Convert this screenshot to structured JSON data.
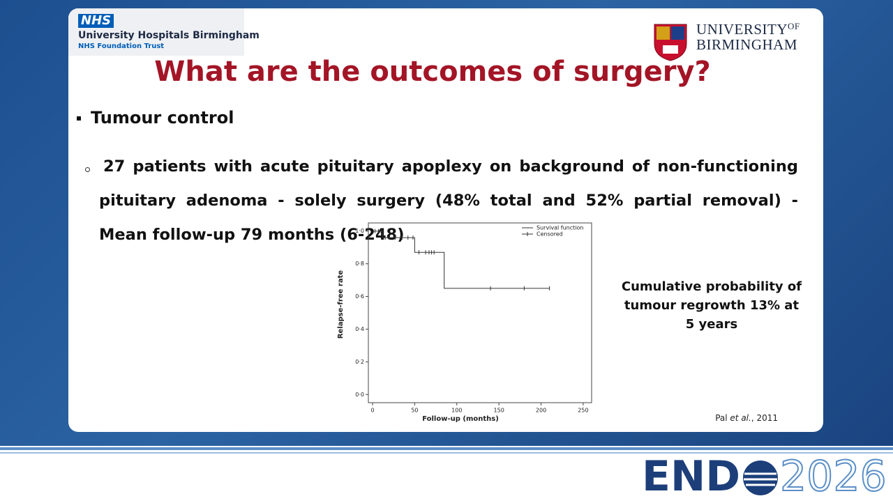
{
  "header": {
    "nhs_badge": "NHS",
    "organisation": "University Hospitals Birmingham",
    "trust": "NHS Foundation Trust",
    "university_line1": "UNIVERSITY",
    "university_of": "OF",
    "university_line2": "BIRMINGHAM"
  },
  "title": "What are the outcomes of surgery?",
  "bullet": "Tumour control",
  "sub_bullet": "27 patients with acute pituitary apoplexy on background of non-functioning pituitary adenoma - solely surgery (48% total and 52% partial removal) - Mean follow-up 79 months (6-248)",
  "callout": "Cumulative probability of tumour regrowth 13% at 5 years",
  "citation": {
    "author": "Pal",
    "etal": "et al.",
    "year": ", 2011"
  },
  "chart_data": {
    "type": "line",
    "step": true,
    "x_label": "Follow-up (months)",
    "y_label": "Relapse-free rate",
    "xlim": [
      -5,
      260
    ],
    "ylim": [
      -0.05,
      1.05
    ],
    "xticks": [
      0,
      50,
      100,
      150,
      200,
      250
    ],
    "yticks": [
      {
        "value": 0,
        "label": "0·0"
      },
      {
        "value": 0.2,
        "label": "0·2"
      },
      {
        "value": 0.4,
        "label": "0·4"
      },
      {
        "value": 0.6,
        "label": "0·6"
      },
      {
        "value": 0.8,
        "label": "0·8"
      },
      {
        "value": 1,
        "label": "1·0"
      }
    ],
    "legend": "top-right",
    "series": [
      {
        "name": "Survival function",
        "color": "#333333",
        "marker": "line",
        "x": [
          0,
          12,
          50,
          85,
          210
        ],
        "values": [
          1.0,
          0.96,
          0.87,
          0.65,
          0.65
        ]
      },
      {
        "name": "Censored",
        "color": "#333333",
        "marker": "cross",
        "x": [
          3,
          7,
          10,
          15,
          20,
          27,
          35,
          42,
          48,
          55,
          63,
          67,
          70,
          73,
          140,
          180,
          210
        ],
        "values": [
          1.0,
          1.0,
          1.0,
          0.96,
          0.96,
          0.96,
          0.96,
          0.96,
          0.96,
          0.87,
          0.87,
          0.87,
          0.87,
          0.87,
          0.65,
          0.65,
          0.65
        ]
      }
    ]
  },
  "footer": {
    "logo_left": "END",
    "logo_right": "2026"
  }
}
